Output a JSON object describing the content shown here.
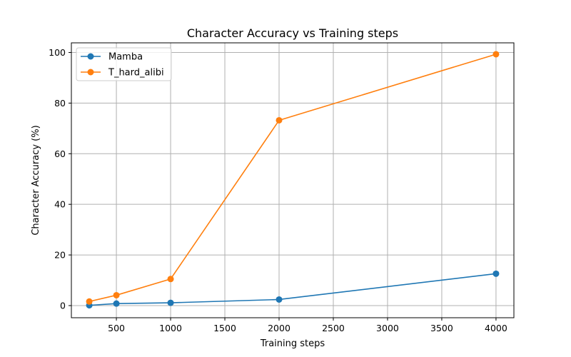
{
  "chart_data": {
    "type": "line",
    "title": "Character Accuracy vs Training steps",
    "xlabel": "Training steps",
    "ylabel": "Character Accuracy (%)",
    "xlim": [
      85,
      4165
    ],
    "ylim": [
      -4.8,
      103.8
    ],
    "x_ticks": [
      500,
      1000,
      1500,
      2000,
      2500,
      3000,
      3500,
      4000
    ],
    "y_ticks": [
      0,
      20,
      40,
      60,
      80,
      100
    ],
    "grid": true,
    "legend_position": "top-left",
    "series": [
      {
        "name": "Mamba",
        "color": "#1f77b4",
        "marker": "circle",
        "x": [
          250,
          500,
          1000,
          2000,
          4000
        ],
        "y": [
          0.1,
          0.8,
          1.1,
          2.4,
          12.6
        ]
      },
      {
        "name": "T_hard_alibi",
        "color": "#ff7f0e",
        "marker": "circle",
        "x": [
          250,
          500,
          1000,
          2000,
          4000
        ],
        "y": [
          1.6,
          4.1,
          10.5,
          73.2,
          99.3
        ]
      }
    ]
  }
}
